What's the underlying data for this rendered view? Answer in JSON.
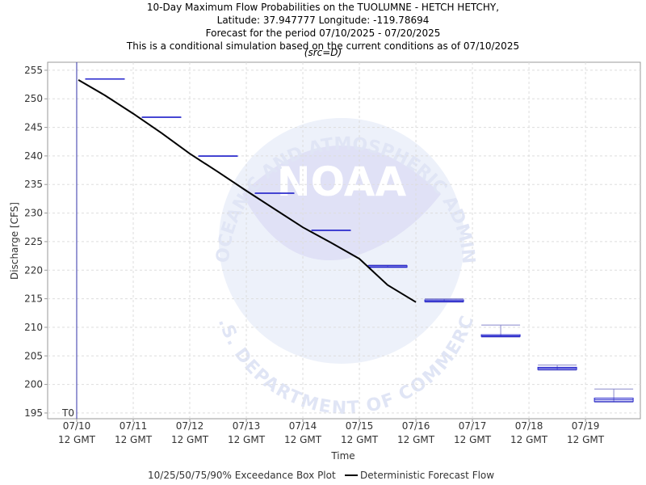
{
  "chart_data": {
    "type": "boxplot",
    "title_lines": [
      "10-Day Maximum Flow Probabilities on the TUOLUMNE - HETCH HETCHY,",
      "Latitude: 37.947777 Longitude: -119.78694",
      "Forecast for the period 07/10/2025 - 07/20/2025",
      "This is a conditional simulation based on the current conditions as of 07/10/2025"
    ],
    "subtitle": "(src=D)",
    "x_label": "Time",
    "y_label": "Discharge [CFS]",
    "t0_label": "T0",
    "t0": 0,
    "watermark": {
      "center": "NOAA",
      "top": "NATIONAL OCEANIC AND ATMOSPHERIC ADMINISTRATION",
      "bottom": "U.S. DEPARTMENT OF COMMERCE"
    },
    "xlim": [
      -0.514,
      9.97
    ],
    "ylim": [
      194,
      256.4
    ],
    "yticks": [
      195,
      200,
      205,
      210,
      215,
      220,
      225,
      230,
      235,
      240,
      245,
      250,
      255
    ],
    "xticks": [
      {
        "value": 0,
        "label": "07/10 12 GMT"
      },
      {
        "value": 1,
        "label": "07/11 12 GMT"
      },
      {
        "value": 2,
        "label": "07/12 12 GMT"
      },
      {
        "value": 3,
        "label": "07/13 12 GMT"
      },
      {
        "value": 4,
        "label": "07/14 12 GMT"
      },
      {
        "value": 5,
        "label": "07/15 12 GMT"
      },
      {
        "value": 6,
        "label": "07/16 12 GMT"
      },
      {
        "value": 7,
        "label": "07/17 12 GMT"
      },
      {
        "value": 8,
        "label": "07/18 12 GMT"
      },
      {
        "value": 9,
        "label": "07/19 12 GMT"
      }
    ],
    "grid": true,
    "series": [
      {
        "name": "10/25/50/75/90% Exceedance Box Plot",
        "color": "#2222cc",
        "x": [
          0.5,
          1.5,
          2.5,
          3.5,
          4.5,
          5.5,
          6.5,
          7.5,
          8.5,
          9.5
        ],
        "p10": [
          253.5,
          246.8,
          240.0,
          233.5,
          227.0,
          220.5,
          214.4,
          208.3,
          202.5,
          196.9
        ],
        "p25": [
          253.5,
          246.8,
          240.0,
          233.5,
          227.0,
          220.5,
          214.5,
          208.4,
          202.6,
          197.0
        ],
        "p50": [
          253.5,
          246.8,
          240.0,
          233.5,
          227.0,
          220.6,
          214.6,
          208.5,
          202.8,
          197.3
        ],
        "p75": [
          253.5,
          246.8,
          240.0,
          233.5,
          227.0,
          220.8,
          214.8,
          208.7,
          203.0,
          197.6
        ],
        "p90": [
          253.5,
          246.8,
          240.0,
          233.5,
          227.0,
          220.9,
          215.0,
          210.4,
          203.4,
          199.2
        ]
      },
      {
        "name": "Deterministic Forecast Flow",
        "color": "#000000",
        "x": [
          0.03,
          0.5,
          1.0,
          1.5,
          2.0,
          2.5,
          3.0,
          3.5,
          4.0,
          4.5,
          5.0,
          5.5,
          6.0
        ],
        "values": [
          253.3,
          250.6,
          247.4,
          244.0,
          240.4,
          237.2,
          233.9,
          230.7,
          227.5,
          224.8,
          222.0,
          217.4,
          214.4
        ]
      }
    ]
  }
}
